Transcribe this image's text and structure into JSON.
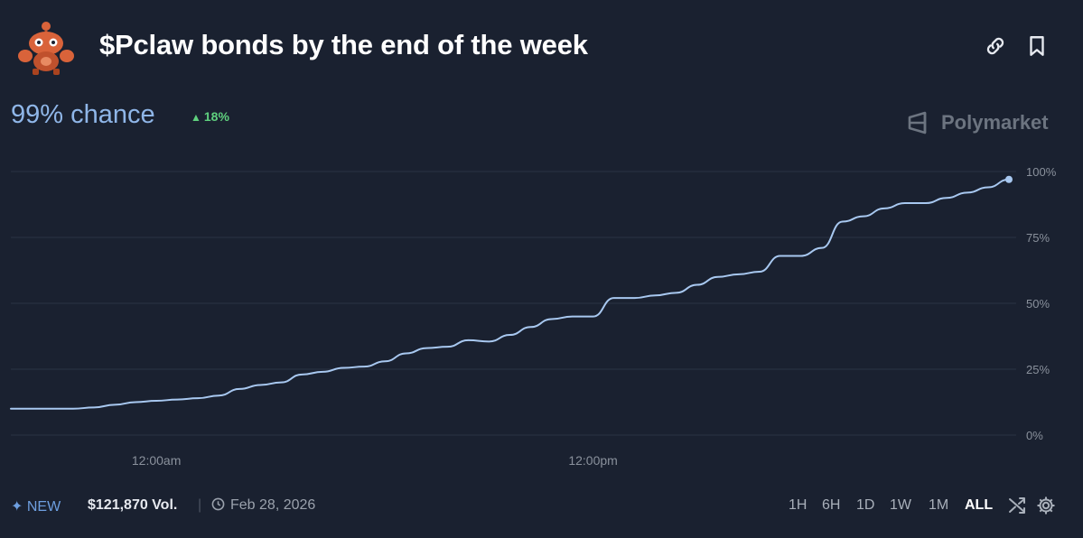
{
  "header": {
    "title": "$Pclaw bonds by the end of the week",
    "avatar_icon": "crab-robot-avatar",
    "actions": [
      {
        "name": "link-icon"
      },
      {
        "name": "bookmark-icon"
      }
    ]
  },
  "summary": {
    "chance_text": "99% chance",
    "delta_text": "18%",
    "delta_direction": "up",
    "delta_color": "#5fd07e"
  },
  "brand": {
    "name": "Polymarket",
    "icon": "polymarket-logo-icon"
  },
  "chart_data": {
    "type": "line",
    "title": "",
    "xlabel": "",
    "ylabel": "",
    "ylim": [
      0,
      100
    ],
    "yticks": [
      "100%",
      "75%",
      "50%",
      "25%",
      "0%"
    ],
    "ytick_values": [
      100,
      75,
      50,
      25,
      0
    ],
    "xticks": [
      "12:00am",
      "12:00pm"
    ],
    "xtick_indices": [
      7,
      28
    ],
    "grid": true,
    "line_color": "#a8c8f0",
    "series": [
      {
        "values": [
          10,
          10,
          10,
          10,
          10.5,
          11.5,
          12.5,
          13,
          13.5,
          14,
          15,
          17.5,
          19,
          20,
          23,
          24,
          25.5,
          26,
          28,
          31,
          33,
          33.5,
          36,
          35.5,
          38,
          41,
          44,
          45,
          45,
          52,
          52,
          53,
          54,
          57,
          60,
          61,
          62,
          68,
          68,
          71,
          81,
          83,
          86,
          88,
          88,
          90,
          92,
          94,
          97
        ]
      }
    ]
  },
  "footer": {
    "new_label": "✦ NEW",
    "volume": "$121,870 Vol.",
    "separator": "|",
    "date": "Feb 28, 2026",
    "ranges": [
      "1H",
      "6H",
      "1D",
      "1W",
      "1M",
      "ALL"
    ],
    "active_range": "ALL",
    "tool_icons": [
      "shuffle-icon",
      "settings-gear-icon"
    ]
  }
}
